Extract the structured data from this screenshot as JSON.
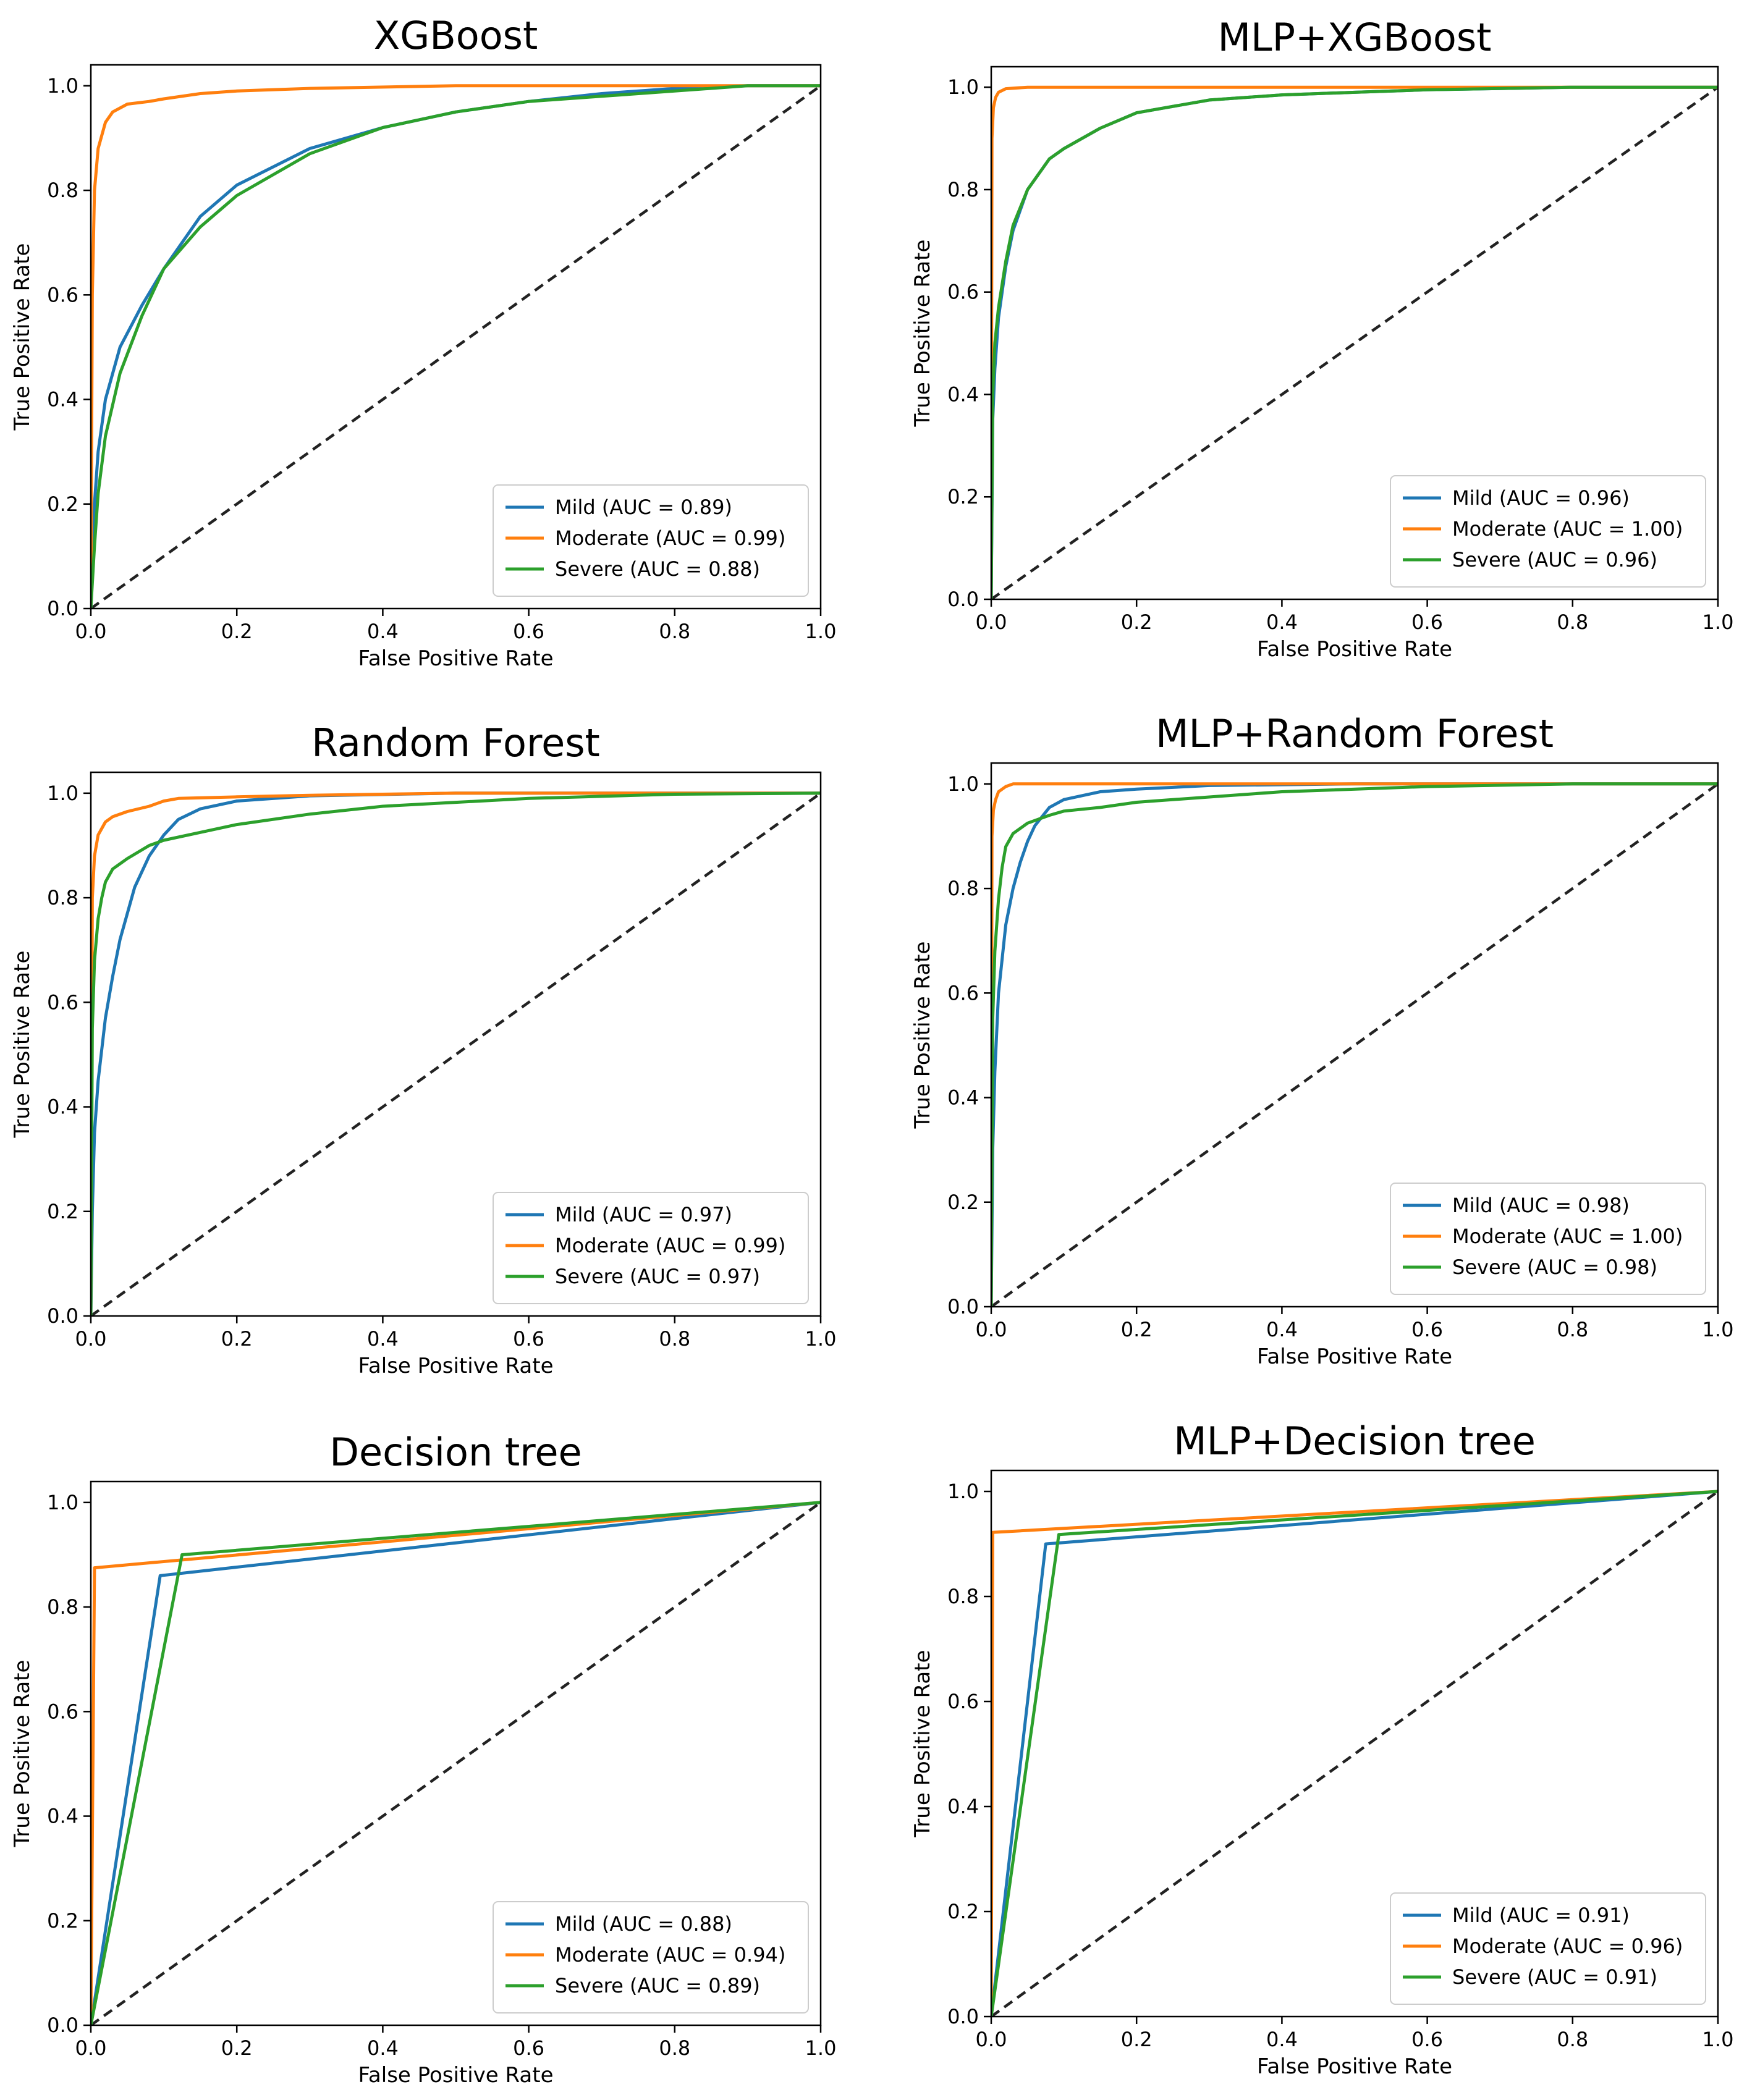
{
  "chart_data": [
    {
      "type": "line",
      "title": "XGBoost",
      "xlabel": "False Positive Rate",
      "ylabel": "True Positive Rate",
      "xlim": [
        0,
        1
      ],
      "ylim": [
        0,
        1.04
      ],
      "xticks": [
        "0.0",
        "0.2",
        "0.4",
        "0.6",
        "0.8",
        "1.0"
      ],
      "yticks": [
        "0.0",
        "0.2",
        "0.4",
        "0.6",
        "0.8",
        "1.0"
      ],
      "legend_position": "lower-right",
      "series": [
        {
          "name": "Mild (AUC = 0.89)",
          "color": "#1f77b4",
          "x": [
            0,
            0.005,
            0.01,
            0.02,
            0.04,
            0.07,
            0.1,
            0.15,
            0.2,
            0.3,
            0.4,
            0.5,
            0.6,
            0.7,
            0.8,
            0.9,
            1.0
          ],
          "y": [
            0,
            0.2,
            0.3,
            0.4,
            0.5,
            0.58,
            0.65,
            0.75,
            0.81,
            0.88,
            0.92,
            0.95,
            0.97,
            0.985,
            0.995,
            1.0,
            1.0
          ]
        },
        {
          "name": "Moderate (AUC = 0.99)",
          "color": "#ff7f0e",
          "x": [
            0,
            0.002,
            0.005,
            0.01,
            0.02,
            0.03,
            0.05,
            0.08,
            0.1,
            0.15,
            0.2,
            0.3,
            0.5,
            0.8,
            1.0
          ],
          "y": [
            0,
            0.6,
            0.8,
            0.88,
            0.93,
            0.95,
            0.965,
            0.97,
            0.975,
            0.985,
            0.99,
            0.995,
            1.0,
            1.0,
            1.0
          ]
        },
        {
          "name": "Severe (AUC = 0.88)",
          "color": "#2ca02c",
          "x": [
            0,
            0.005,
            0.01,
            0.02,
            0.04,
            0.07,
            0.1,
            0.15,
            0.2,
            0.3,
            0.4,
            0.5,
            0.6,
            0.7,
            0.8,
            0.9,
            1.0
          ],
          "y": [
            0,
            0.12,
            0.22,
            0.33,
            0.45,
            0.56,
            0.65,
            0.73,
            0.79,
            0.87,
            0.92,
            0.95,
            0.97,
            0.98,
            0.99,
            1.0,
            1.0
          ]
        }
      ]
    },
    {
      "type": "line",
      "title": "MLP+XGBoost",
      "xlabel": "False Positive Rate",
      "ylabel": "True Positive Rate",
      "xlim": [
        0,
        1
      ],
      "ylim": [
        0,
        1.04
      ],
      "xticks": [
        "0.0",
        "0.2",
        "0.4",
        "0.6",
        "0.8",
        "1.0"
      ],
      "yticks": [
        "0.0",
        "0.2",
        "0.4",
        "0.6",
        "0.8",
        "1.0"
      ],
      "legend_position": "lower-right",
      "series": [
        {
          "name": "Mild (AUC = 0.96)",
          "color": "#1f77b4",
          "x": [
            0,
            0.002,
            0.005,
            0.01,
            0.02,
            0.03,
            0.05,
            0.08,
            0.1,
            0.15,
            0.2,
            0.3,
            0.4,
            0.5,
            0.6,
            0.8,
            1.0
          ],
          "y": [
            0,
            0.35,
            0.45,
            0.55,
            0.65,
            0.72,
            0.8,
            0.86,
            0.88,
            0.92,
            0.95,
            0.975,
            0.985,
            0.99,
            0.995,
            1.0,
            1.0
          ]
        },
        {
          "name": "Moderate (AUC = 1.00)",
          "color": "#ff7f0e",
          "x": [
            0,
            0.001,
            0.003,
            0.006,
            0.01,
            0.02,
            0.05,
            0.2,
            0.5,
            1.0
          ],
          "y": [
            0,
            0.9,
            0.96,
            0.98,
            0.99,
            0.997,
            1.0,
            1.0,
            1.0,
            1.0
          ]
        },
        {
          "name": "Severe (AUC = 0.96)",
          "color": "#2ca02c",
          "x": [
            0,
            0.002,
            0.005,
            0.01,
            0.02,
            0.03,
            0.05,
            0.08,
            0.1,
            0.15,
            0.2,
            0.3,
            0.4,
            0.5,
            0.6,
            0.8,
            1.0
          ],
          "y": [
            0,
            0.4,
            0.5,
            0.57,
            0.66,
            0.73,
            0.8,
            0.86,
            0.88,
            0.92,
            0.95,
            0.975,
            0.985,
            0.99,
            0.995,
            1.0,
            1.0
          ]
        }
      ]
    },
    {
      "type": "line",
      "title": "Random Forest",
      "xlabel": "False Positive Rate",
      "ylabel": "True Positive Rate",
      "xlim": [
        0,
        1
      ],
      "ylim": [
        0,
        1.04
      ],
      "xticks": [
        "0.0",
        "0.2",
        "0.4",
        "0.6",
        "0.8",
        "1.0"
      ],
      "yticks": [
        "0.0",
        "0.2",
        "0.4",
        "0.6",
        "0.8",
        "1.0"
      ],
      "legend_position": "lower-right",
      "series": [
        {
          "name": "Mild (AUC = 0.97)",
          "color": "#1f77b4",
          "x": [
            0,
            0.002,
            0.005,
            0.01,
            0.02,
            0.03,
            0.04,
            0.06,
            0.08,
            0.1,
            0.12,
            0.15,
            0.2,
            0.3,
            0.5,
            1.0
          ],
          "y": [
            0,
            0.2,
            0.35,
            0.45,
            0.57,
            0.65,
            0.72,
            0.82,
            0.88,
            0.92,
            0.95,
            0.97,
            0.985,
            0.995,
            1.0,
            1.0
          ]
        },
        {
          "name": "Moderate (AUC = 0.99)",
          "color": "#ff7f0e",
          "x": [
            0,
            0.002,
            0.005,
            0.01,
            0.02,
            0.03,
            0.05,
            0.08,
            0.1,
            0.12,
            0.2,
            0.3,
            0.5,
            1.0
          ],
          "y": [
            0,
            0.8,
            0.88,
            0.92,
            0.945,
            0.955,
            0.965,
            0.975,
            0.985,
            0.99,
            0.993,
            0.996,
            1.0,
            1.0
          ]
        },
        {
          "name": "Severe (AUC = 0.97)",
          "color": "#2ca02c",
          "x": [
            0,
            0.002,
            0.005,
            0.01,
            0.015,
            0.02,
            0.03,
            0.05,
            0.08,
            0.1,
            0.15,
            0.2,
            0.3,
            0.4,
            0.6,
            0.8,
            1.0
          ],
          "y": [
            0,
            0.55,
            0.68,
            0.76,
            0.8,
            0.83,
            0.855,
            0.875,
            0.9,
            0.91,
            0.925,
            0.94,
            0.96,
            0.975,
            0.99,
            0.998,
            1.0
          ]
        }
      ]
    },
    {
      "type": "line",
      "title": "MLP+Random Forest",
      "xlabel": "False Positive Rate",
      "ylabel": "True Positive Rate",
      "xlim": [
        0,
        1
      ],
      "ylim": [
        0,
        1.04
      ],
      "xticks": [
        "0.0",
        "0.2",
        "0.4",
        "0.6",
        "0.8",
        "1.0"
      ],
      "yticks": [
        "0.0",
        "0.2",
        "0.4",
        "0.6",
        "0.8",
        "1.0"
      ],
      "legend_position": "lower-right",
      "series": [
        {
          "name": "Mild (AUC = 0.98)",
          "color": "#1f77b4",
          "x": [
            0,
            0.002,
            0.005,
            0.01,
            0.02,
            0.03,
            0.04,
            0.05,
            0.06,
            0.08,
            0.1,
            0.15,
            0.2,
            0.3,
            0.5,
            1.0
          ],
          "y": [
            0,
            0.3,
            0.45,
            0.6,
            0.73,
            0.8,
            0.85,
            0.89,
            0.92,
            0.955,
            0.97,
            0.985,
            0.99,
            0.997,
            1.0,
            1.0
          ]
        },
        {
          "name": "Moderate (AUC = 1.00)",
          "color": "#ff7f0e",
          "x": [
            0,
            0.001,
            0.003,
            0.006,
            0.01,
            0.02,
            0.03,
            0.1,
            0.5,
            1.0
          ],
          "y": [
            0,
            0.9,
            0.95,
            0.97,
            0.985,
            0.995,
            1.0,
            1.0,
            1.0,
            1.0
          ]
        },
        {
          "name": "Severe (AUC = 0.98)",
          "color": "#2ca02c",
          "x": [
            0,
            0.002,
            0.005,
            0.01,
            0.015,
            0.02,
            0.03,
            0.05,
            0.08,
            0.1,
            0.15,
            0.2,
            0.3,
            0.4,
            0.6,
            0.8,
            1.0
          ],
          "y": [
            0,
            0.55,
            0.68,
            0.78,
            0.84,
            0.88,
            0.905,
            0.925,
            0.94,
            0.948,
            0.955,
            0.965,
            0.975,
            0.985,
            0.995,
            1.0,
            1.0
          ]
        }
      ]
    },
    {
      "type": "line",
      "title": "Decision tree",
      "xlabel": "False Positive Rate",
      "ylabel": "True Positive Rate",
      "xlim": [
        0,
        1
      ],
      "ylim": [
        0,
        1.04
      ],
      "xticks": [
        "0.0",
        "0.2",
        "0.4",
        "0.6",
        "0.8",
        "1.0"
      ],
      "yticks": [
        "0.0",
        "0.2",
        "0.4",
        "0.6",
        "0.8",
        "1.0"
      ],
      "legend_position": "lower-right",
      "series": [
        {
          "name": "Mild (AUC = 0.88)",
          "color": "#1f77b4",
          "x": [
            0,
            0.095,
            1.0
          ],
          "y": [
            0,
            0.86,
            1.0
          ]
        },
        {
          "name": "Moderate (AUC = 0.94)",
          "color": "#ff7f0e",
          "x": [
            0,
            0.005,
            1.0
          ],
          "y": [
            0,
            0.875,
            1.0
          ]
        },
        {
          "name": "Severe (AUC = 0.89)",
          "color": "#2ca02c",
          "x": [
            0,
            0.125,
            1.0
          ],
          "y": [
            0,
            0.9,
            1.0
          ]
        }
      ]
    },
    {
      "type": "line",
      "title": "MLP+Decision tree",
      "xlabel": "False Positive Rate",
      "ylabel": "True Positive Rate",
      "xlim": [
        0,
        1
      ],
      "ylim": [
        0,
        1.04
      ],
      "xticks": [
        "0.0",
        "0.2",
        "0.4",
        "0.6",
        "0.8",
        "1.0"
      ],
      "yticks": [
        "0.0",
        "0.2",
        "0.4",
        "0.6",
        "0.8",
        "1.0"
      ],
      "legend_position": "lower-right",
      "series": [
        {
          "name": "Mild (AUC = 0.91)",
          "color": "#1f77b4",
          "x": [
            0,
            0.075,
            1.0
          ],
          "y": [
            0,
            0.9,
            1.0
          ]
        },
        {
          "name": "Moderate (AUC = 0.96)",
          "color": "#ff7f0e",
          "x": [
            0,
            0.002,
            1.0
          ],
          "y": [
            0,
            0.922,
            1.0
          ]
        },
        {
          "name": "Severe (AUC = 0.91)",
          "color": "#2ca02c",
          "x": [
            0,
            0.093,
            1.0
          ],
          "y": [
            0,
            0.918,
            1.0
          ]
        }
      ]
    }
  ]
}
